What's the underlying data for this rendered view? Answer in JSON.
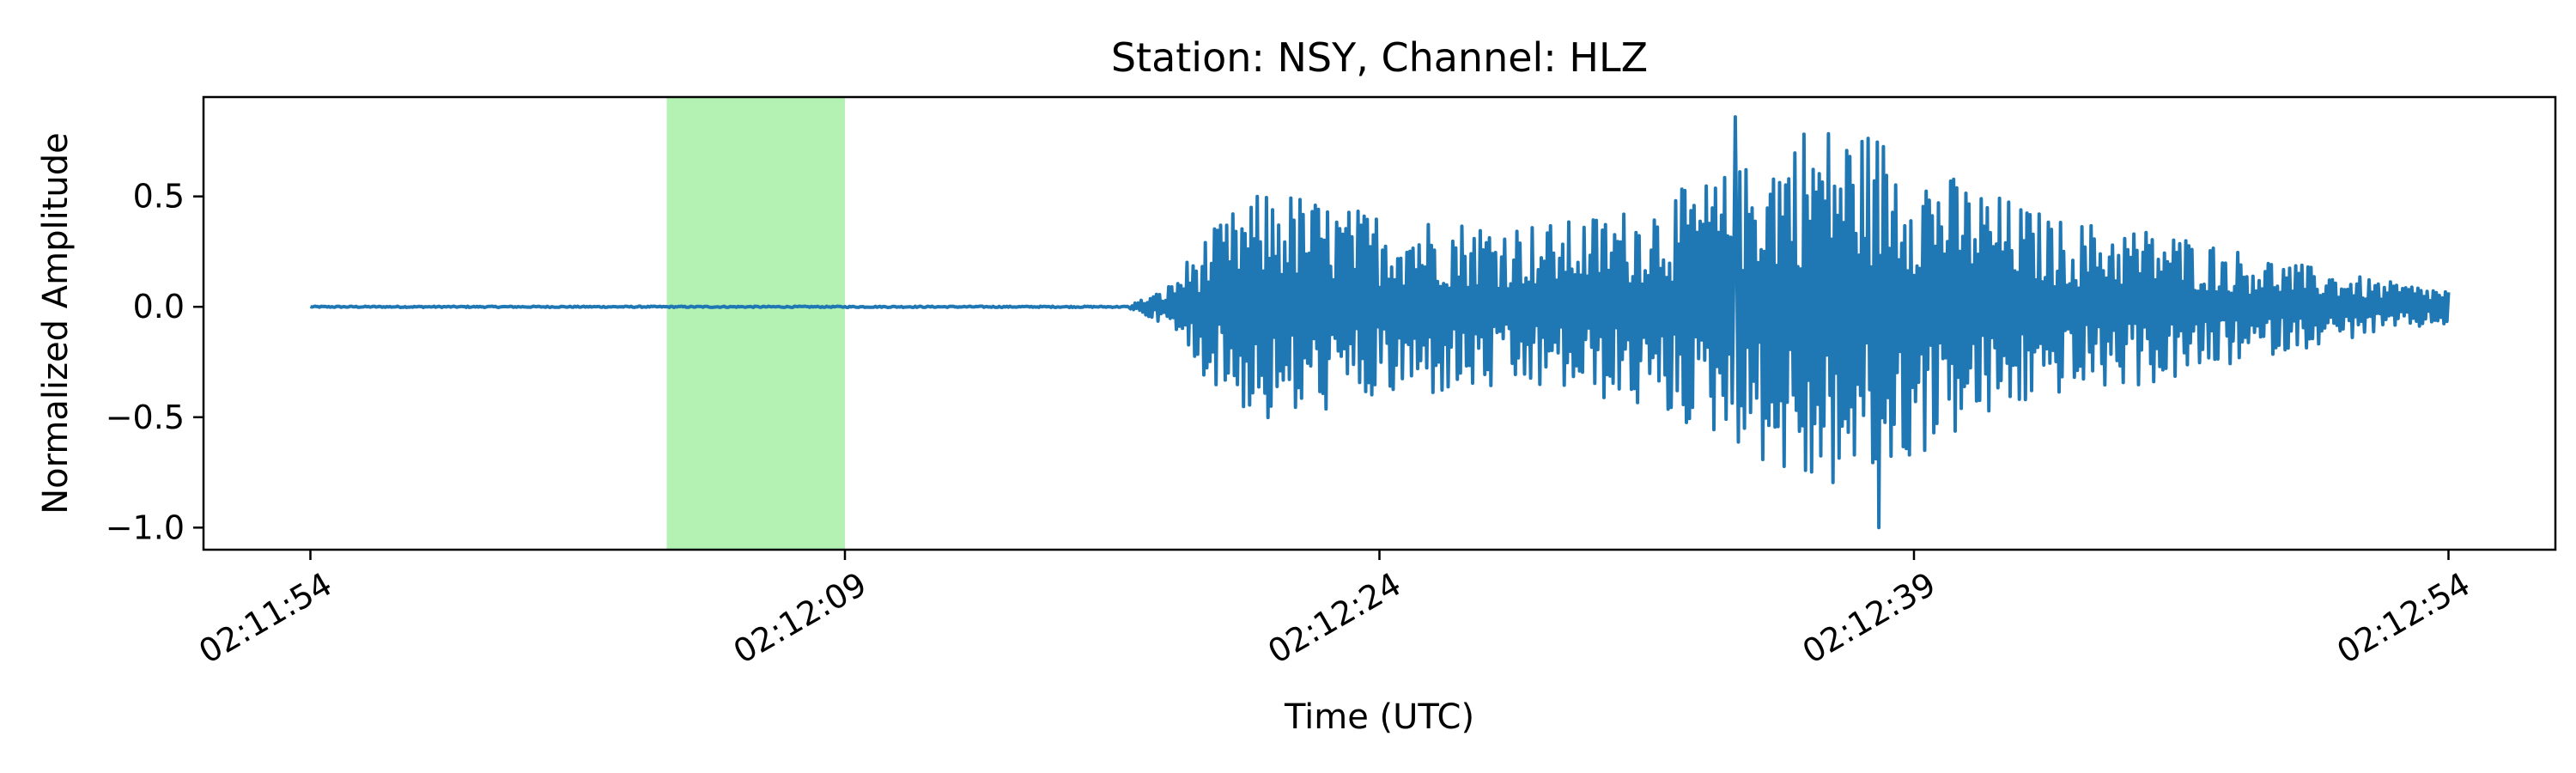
{
  "chart_data": {
    "type": "line",
    "title": "Station: NSY, Channel: HLZ",
    "xlabel": "Time (UTC)",
    "ylabel": "Normalized Amplitude",
    "x_tick_labels": [
      "02:11:54",
      "02:12:09",
      "02:12:24",
      "02:12:39",
      "02:12:54"
    ],
    "y_tick_labels": [
      "0.5",
      "0.0",
      "−0.5",
      "−1.0"
    ],
    "y_ticks": [
      0.5,
      0.0,
      -0.5,
      -1.0
    ],
    "xlim": [
      "02:11:51",
      "02:12:57"
    ],
    "ylim": [
      -1.1,
      0.95
    ],
    "grid": false,
    "highlight_window": {
      "start": "02:12:04",
      "end": "02:12:09",
      "color": "#b3f2b3"
    },
    "series": [
      {
        "color": "#1f77b4",
        "time_range": [
          "02:11:54",
          "02:12:54"
        ],
        "envelope": [
          [
            "02:11:54",
            0.01
          ],
          [
            "02:12:17",
            0.01
          ],
          [
            "02:12:18",
            0.08
          ],
          [
            "02:12:19",
            0.3
          ],
          [
            "02:12:20",
            0.45
          ],
          [
            "02:12:21",
            0.55
          ],
          [
            "02:12:23",
            0.45
          ],
          [
            "02:12:26",
            0.4
          ],
          [
            "02:12:29",
            0.38
          ],
          [
            "02:12:31",
            0.45
          ],
          [
            "02:12:34",
            0.62
          ],
          [
            "02:12:36",
            0.85
          ],
          [
            "02:12:38",
            0.8
          ],
          [
            "02:12:40",
            0.6
          ],
          [
            "02:12:43",
            0.4
          ],
          [
            "02:12:46",
            0.35
          ],
          [
            "02:12:49",
            0.22
          ],
          [
            "02:12:52",
            0.12
          ],
          [
            "02:12:54",
            0.08
          ]
        ],
        "peak_max": {
          "time": "02:12:34",
          "value": 0.86
        },
        "peak_min": {
          "time": "02:12:38",
          "value": -1.0
        }
      }
    ]
  }
}
